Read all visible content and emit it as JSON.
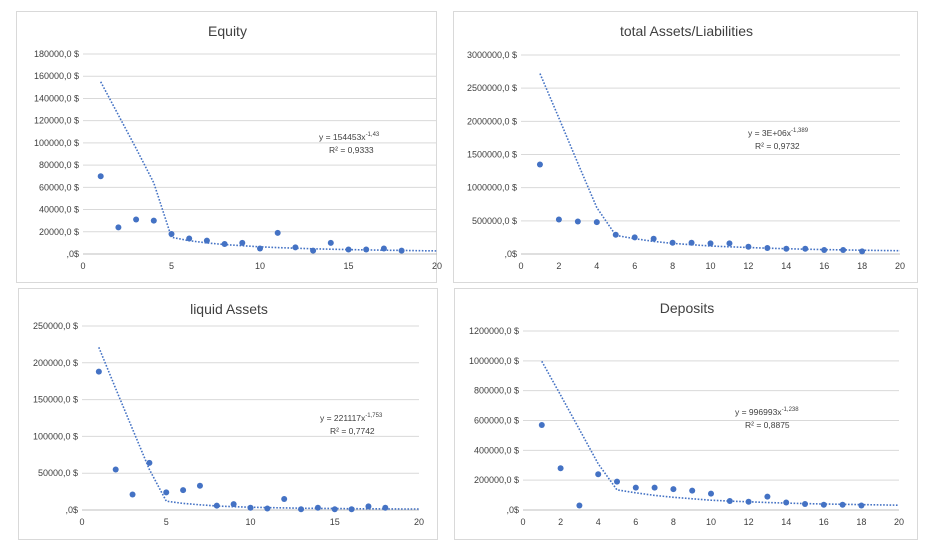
{
  "chart_data": [
    {
      "type": "scatter",
      "title": "Equity",
      "xlabel": "",
      "ylabel": "",
      "xlim": [
        0,
        20
      ],
      "ylim": [
        0,
        180000
      ],
      "x_ticks": [
        "0",
        "5",
        "10",
        "15",
        "20"
      ],
      "y_ticks": [
        ",0$",
        "20000,0 $",
        "40000,0 $",
        "60000,0 $",
        "80000,0 $",
        "100000,0 $",
        "120000,0 $",
        "140000,0 $",
        "160000,0 $",
        "180000,0 $"
      ],
      "x": [
        1,
        2,
        3,
        4,
        5,
        6,
        7,
        8,
        9,
        10,
        11,
        12,
        13,
        14,
        15,
        16,
        17,
        18
      ],
      "values": [
        70000,
        24000,
        31000,
        30000,
        18000,
        14000,
        12000,
        9000,
        10000,
        5000,
        19000,
        6000,
        3000,
        10000,
        4000,
        4000,
        5000,
        3000
      ],
      "trendline": {
        "type": "power",
        "coef": 154453,
        "exp": -1.43,
        "x": [
          1,
          2,
          3,
          4,
          5,
          6,
          7,
          8,
          9,
          10,
          11,
          12,
          13,
          14,
          15,
          16,
          17,
          18,
          19,
          20
        ],
        "y": [
          155000,
          125000,
          95000,
          64000,
          15000,
          12000,
          10000,
          8500,
          7500,
          6500,
          5800,
          5200,
          4700,
          4300,
          4000,
          3700,
          3400,
          3200,
          3000,
          2800
        ]
      },
      "equation": "y = 154453x",
      "equation_exp": "-1,43",
      "r2_label": "R² = 0,9333"
    },
    {
      "type": "scatter",
      "title": "total Assets/Liabilities",
      "xlabel": "",
      "ylabel": "",
      "xlim": [
        0,
        20
      ],
      "ylim": [
        0,
        3000000
      ],
      "x_ticks": [
        "0",
        "2",
        "4",
        "6",
        "8",
        "10",
        "12",
        "14",
        "16",
        "18",
        "20"
      ],
      "y_ticks": [
        ",0$",
        "500000,0 $",
        "1000000,0 $",
        "1500000,0 $",
        "2000000,0 $",
        "2500000,0 $",
        "3000000,0 $"
      ],
      "x": [
        1,
        2,
        3,
        4,
        5,
        6,
        7,
        8,
        9,
        10,
        11,
        12,
        13,
        14,
        15,
        16,
        17,
        18
      ],
      "values": [
        1350000,
        520000,
        490000,
        480000,
        290000,
        250000,
        230000,
        170000,
        170000,
        160000,
        160000,
        110000,
        90000,
        80000,
        80000,
        60000,
        60000,
        40000
      ],
      "trendline": {
        "type": "power",
        "coef": 3000000,
        "exp": -1.389,
        "x": [
          1,
          2,
          3,
          4,
          5,
          6,
          7,
          8,
          9,
          10,
          11,
          12,
          13,
          14,
          15,
          16,
          17,
          18,
          19,
          20
        ],
        "y": [
          2720000,
          2050000,
          1370000,
          700000,
          280000,
          230000,
          190000,
          160000,
          140000,
          120000,
          108000,
          98000,
          88000,
          80000,
          73000,
          67000,
          62000,
          57000,
          53000,
          49000
        ]
      },
      "equation": "y = 3E+06x",
      "equation_exp": "-1,389",
      "r2_label": "R² = 0,9732"
    },
    {
      "type": "scatter",
      "title": "liquid Assets",
      "xlabel": "",
      "ylabel": "",
      "xlim": [
        0,
        20
      ],
      "ylim": [
        0,
        250000
      ],
      "x_ticks": [
        "0",
        "5",
        "10",
        "15",
        "20"
      ],
      "y_ticks": [
        ",0$",
        "50000,0 $",
        "100000,0 $",
        "150000,0 $",
        "200000,0 $",
        "250000,0 $"
      ],
      "x": [
        1,
        2,
        3,
        4,
        5,
        6,
        7,
        8,
        9,
        10,
        11,
        12,
        13,
        14,
        15,
        16,
        17,
        18
      ],
      "values": [
        188000,
        55000,
        21000,
        64000,
        24000,
        27000,
        33000,
        6000,
        8000,
        3000,
        2000,
        15000,
        1000,
        3000,
        1000,
        1000,
        5000,
        3000
      ],
      "trendline": {
        "type": "power",
        "coef": 221117,
        "exp": -1.753,
        "x": [
          1,
          2,
          3,
          4,
          5,
          6,
          7,
          8,
          9,
          10,
          11,
          12,
          13,
          14,
          15,
          16,
          17,
          18,
          19,
          20
        ],
        "y": [
          221000,
          165000,
          110000,
          55000,
          12000,
          9000,
          7000,
          5500,
          4500,
          3800,
          3200,
          2800,
          2500,
          2200,
          2000,
          1800,
          1600,
          1500,
          1400,
          1300
        ]
      },
      "equation": "y = 221117x",
      "equation_exp": "-1,753",
      "r2_label": "R² = 0,7742"
    },
    {
      "type": "scatter",
      "title": "Deposits",
      "xlabel": "",
      "ylabel": "",
      "xlim": [
        0,
        20
      ],
      "ylim": [
        0,
        1200000
      ],
      "x_ticks": [
        "0",
        "2",
        "4",
        "6",
        "8",
        "10",
        "12",
        "14",
        "16",
        "18",
        "20"
      ],
      "y_ticks": [
        ",0$",
        "200000,0 $",
        "400000,0 $",
        "600000,0 $",
        "800000,0 $",
        "1000000,0 $",
        "1200000,0 $"
      ],
      "x": [
        1,
        2,
        3,
        4,
        5,
        6,
        7,
        8,
        9,
        10,
        11,
        12,
        13,
        14,
        15,
        16,
        17,
        18
      ],
      "values": [
        570000,
        280000,
        30000,
        240000,
        190000,
        150000,
        150000,
        140000,
        130000,
        110000,
        60000,
        55000,
        90000,
        50000,
        40000,
        35000,
        35000,
        30000
      ],
      "trendline": {
        "type": "power",
        "coef": 996993,
        "exp": -1.238,
        "x": [
          1,
          2,
          3,
          4,
          5,
          6,
          7,
          8,
          9,
          10,
          11,
          12,
          13,
          14,
          15,
          16,
          17,
          18,
          19,
          20
        ],
        "y": [
          997000,
          770000,
          540000,
          310000,
          135000,
          115000,
          98000,
          85000,
          75000,
          66000,
          60000,
          55000,
          50000,
          46000,
          43000,
          40000,
          38000,
          36000,
          34000,
          32000
        ]
      },
      "equation": "y = 996993x",
      "equation_exp": "-1,238",
      "r2_label": "R² = 0,8875"
    }
  ]
}
